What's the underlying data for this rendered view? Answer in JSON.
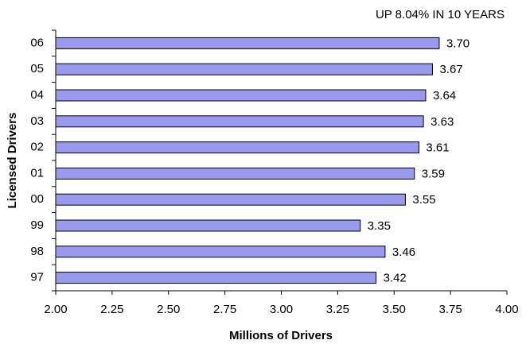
{
  "chart_data": {
    "type": "bar",
    "orientation": "horizontal",
    "title": "UP 8.04% IN 10 YEARS",
    "x_label": "Millions of Drivers",
    "y_label": "Licensed Drivers",
    "categories": [
      "06",
      "05",
      "04",
      "03",
      "02",
      "01",
      "00",
      "99",
      "98",
      "97"
    ],
    "values": [
      3.7,
      3.67,
      3.64,
      3.63,
      3.61,
      3.59,
      3.55,
      3.35,
      3.46,
      3.42
    ],
    "value_labels": [
      "3.70",
      "3.67",
      "3.64",
      "3.63",
      "3.61",
      "3.59",
      "3.55",
      "3.35",
      "3.46",
      "3.42"
    ],
    "color": "#9999ee",
    "xlim": [
      2,
      4
    ],
    "xticks": [
      {
        "value": 2,
        "label": "2.00"
      },
      {
        "value": 2.25,
        "label": "2.25"
      },
      {
        "value": 2.5,
        "label": "2.50"
      },
      {
        "value": 2.75,
        "label": "2.75"
      },
      {
        "value": 3,
        "label": "3.00"
      },
      {
        "value": 3.25,
        "label": "3.25"
      },
      {
        "value": 3.5,
        "label": "3.50"
      },
      {
        "value": 3.75,
        "label": "3.75"
      },
      {
        "value": 4,
        "label": "4.00"
      }
    ],
    "grid": false
  }
}
